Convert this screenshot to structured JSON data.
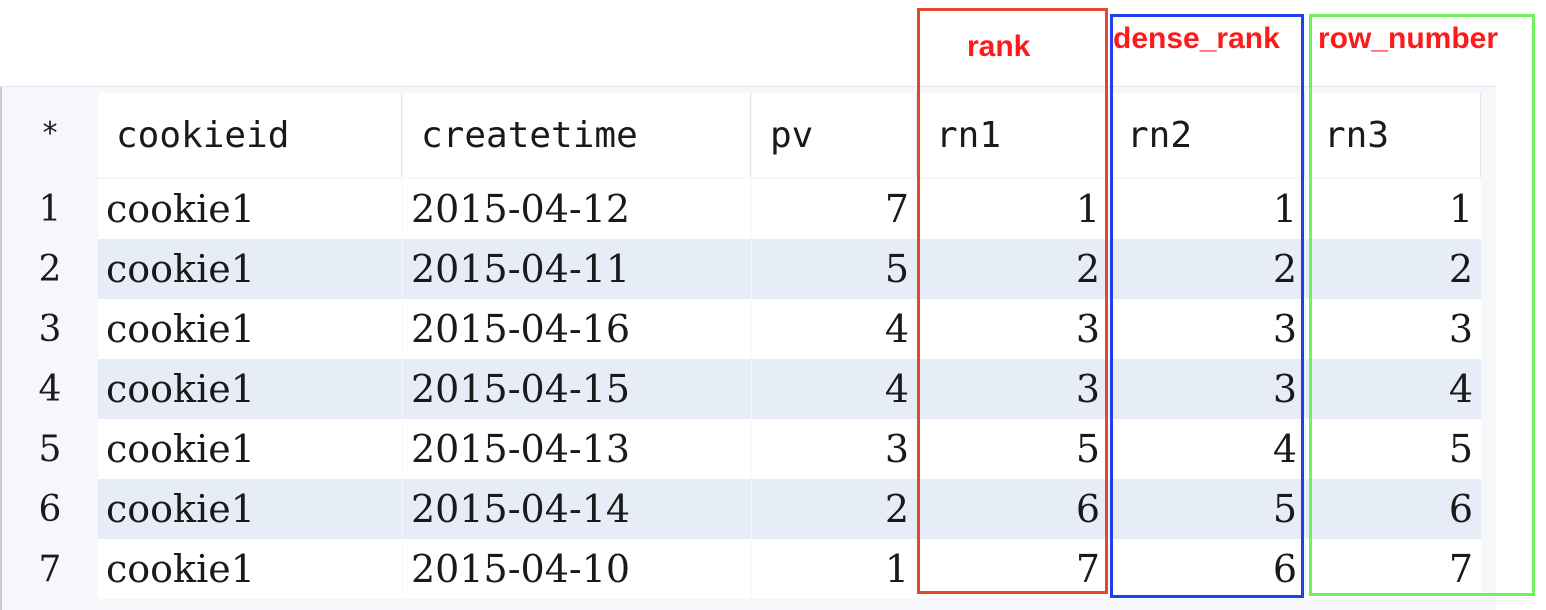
{
  "annotations": {
    "rank": "rank",
    "dense_rank": "dense_rank",
    "row_number": "row_number"
  },
  "table": {
    "corner": "*",
    "columns": [
      "cookieid",
      "createtime",
      "pv",
      "rn1",
      "rn2",
      "rn3"
    ],
    "rows": [
      {
        "index": "1",
        "cookieid": "cookie1",
        "createtime": "2015-04-12",
        "pv": "7",
        "rn1": "1",
        "rn2": "1",
        "rn3": "1"
      },
      {
        "index": "2",
        "cookieid": "cookie1",
        "createtime": "2015-04-11",
        "pv": "5",
        "rn1": "2",
        "rn2": "2",
        "rn3": "2"
      },
      {
        "index": "3",
        "cookieid": "cookie1",
        "createtime": "2015-04-16",
        "pv": "4",
        "rn1": "3",
        "rn2": "3",
        "rn3": "3"
      },
      {
        "index": "4",
        "cookieid": "cookie1",
        "createtime": "2015-04-15",
        "pv": "4",
        "rn1": "3",
        "rn2": "3",
        "rn3": "4"
      },
      {
        "index": "5",
        "cookieid": "cookie1",
        "createtime": "2015-04-13",
        "pv": "3",
        "rn1": "5",
        "rn2": "4",
        "rn3": "5"
      },
      {
        "index": "6",
        "cookieid": "cookie1",
        "createtime": "2015-04-14",
        "pv": "2",
        "rn1": "6",
        "rn2": "5",
        "rn3": "6"
      },
      {
        "index": "7",
        "cookieid": "cookie1",
        "createtime": "2015-04-10",
        "pv": "1",
        "rn1": "7",
        "rn2": "6",
        "rn3": "7"
      }
    ]
  },
  "colors": {
    "rank_box": "#e2472f",
    "dense_rank_box": "#1f3ff0",
    "row_number_box": "#6ff35a",
    "annotation_text": "#ff1a1a"
  }
}
